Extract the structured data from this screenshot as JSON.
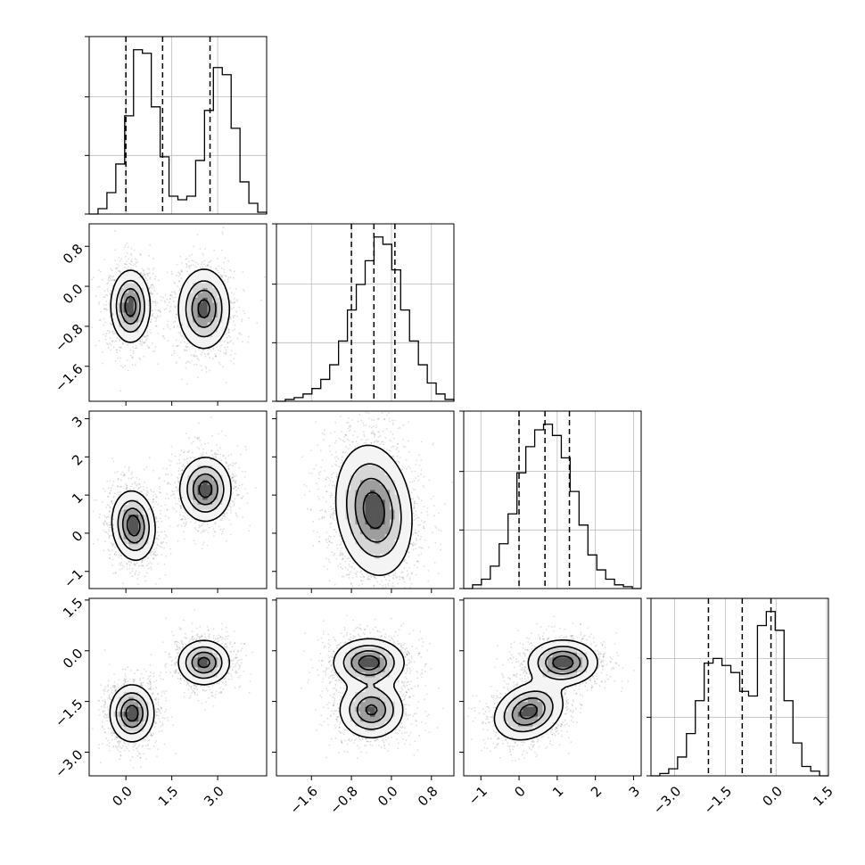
{
  "chart_data": {
    "type": "corner",
    "title": "",
    "grid": true,
    "quantile_lines": "dashed",
    "parameters": [
      {
        "range": [
          -1.2,
          4.6
        ],
        "ticks": [
          "0.0",
          "1.5",
          "3.0"
        ],
        "tick_values": [
          0,
          1.5,
          3.0
        ]
      },
      {
        "range": [
          -2.3,
          1.25
        ],
        "ticks": [
          "−1.6",
          "−0.8",
          "0.0",
          "0.8"
        ],
        "tick_values": [
          -1.6,
          -0.8,
          0.0,
          0.8
        ]
      },
      {
        "range": [
          -1.45,
          3.2
        ],
        "ticks": [
          "−1",
          "0",
          "1",
          "2",
          "3"
        ],
        "tick_values": [
          -1,
          0,
          1,
          2,
          3
        ]
      },
      {
        "range": [
          -3.7,
          1.55
        ],
        "ticks": [
          "−3.0",
          "−1.5",
          "0.0",
          "1.5"
        ],
        "tick_values": [
          -3.0,
          -1.5,
          0.0,
          1.5
        ]
      }
    ],
    "histograms": [
      {
        "param": 0,
        "bin_edges_range": [
          -1.2,
          4.6
        ],
        "counts": [
          0,
          3,
          12,
          28,
          55,
          92,
          90,
          60,
          32,
          10,
          8,
          10,
          30,
          58,
          82,
          78,
          48,
          18,
          6,
          1
        ],
        "quantiles": [
          0.0,
          1.2,
          2.75
        ]
      },
      {
        "param": 1,
        "bin_edges_range": [
          -2.3,
          1.25
        ],
        "counts": [
          0,
          1,
          2,
          4,
          7,
          12,
          20,
          33,
          50,
          64,
          77,
          90,
          86,
          72,
          50,
          33,
          20,
          10,
          4,
          1
        ],
        "quantiles": [
          -0.8,
          -0.35,
          0.07
        ]
      },
      {
        "param": 2,
        "bin_edges_range": [
          -1.45,
          3.2
        ],
        "counts": [
          0,
          2,
          5,
          12,
          24,
          40,
          62,
          76,
          85,
          88,
          82,
          70,
          52,
          34,
          18,
          10,
          5,
          2,
          1,
          0
        ],
        "quantiles": [
          0.0,
          0.68,
          1.32
        ]
      },
      {
        "param": 3,
        "bin_edges_range": [
          -3.7,
          1.55
        ],
        "counts": [
          0,
          1,
          3,
          8,
          18,
          32,
          48,
          50,
          47,
          44,
          36,
          34,
          64,
          70,
          62,
          32,
          14,
          4,
          2,
          0
        ],
        "quantiles": [
          -2.0,
          -1.0,
          -0.15
        ]
      }
    ],
    "pairs": [
      {
        "x": 0,
        "y": 1,
        "modes": [
          {
            "mx": 0.15,
            "my": -0.4,
            "sx": 0.32,
            "sy": 0.36,
            "rho": 0.0,
            "w": 1.0
          },
          {
            "mx": 2.55,
            "my": -0.45,
            "sx": 0.42,
            "sy": 0.4,
            "rho": 0.0,
            "w": 0.95
          }
        ]
      },
      {
        "x": 0,
        "y": 2,
        "modes": [
          {
            "mx": 0.25,
            "my": 0.2,
            "sx": 0.35,
            "sy": 0.45,
            "rho": -0.1,
            "w": 1.0
          },
          {
            "mx": 2.6,
            "my": 1.15,
            "sx": 0.42,
            "sy": 0.42,
            "rho": 0.0,
            "w": 0.95
          }
        ]
      },
      {
        "x": 0,
        "y": 3,
        "modes": [
          {
            "mx": 0.2,
            "my": -1.85,
            "sx": 0.36,
            "sy": 0.42,
            "rho": 0.0,
            "w": 1.0
          },
          {
            "mx": 2.55,
            "my": -0.35,
            "sx": 0.42,
            "sy": 0.33,
            "rho": 0.0,
            "w": 0.95
          }
        ]
      },
      {
        "x": 1,
        "y": 2,
        "modes": [
          {
            "mx": -0.35,
            "my": 0.6,
            "sx": 0.38,
            "sy": 0.85,
            "rho": -0.15,
            "w": 1.0
          }
        ]
      },
      {
        "x": 1,
        "y": 3,
        "modes": [
          {
            "mx": -0.4,
            "my": -1.75,
            "sx": 0.32,
            "sy": 0.42,
            "rho": 0.0,
            "w": 0.9
          },
          {
            "mx": -0.45,
            "my": -0.35,
            "sx": 0.35,
            "sy": 0.35,
            "rho": 0.0,
            "w": 1.0
          }
        ]
      },
      {
        "x": 2,
        "y": 3,
        "modes": [
          {
            "mx": 0.25,
            "my": -1.8,
            "sx": 0.45,
            "sy": 0.42,
            "rho": 0.25,
            "w": 0.95
          },
          {
            "mx": 1.15,
            "my": -0.35,
            "sx": 0.45,
            "sy": 0.33,
            "rho": 0.0,
            "w": 1.0
          }
        ]
      }
    ]
  }
}
